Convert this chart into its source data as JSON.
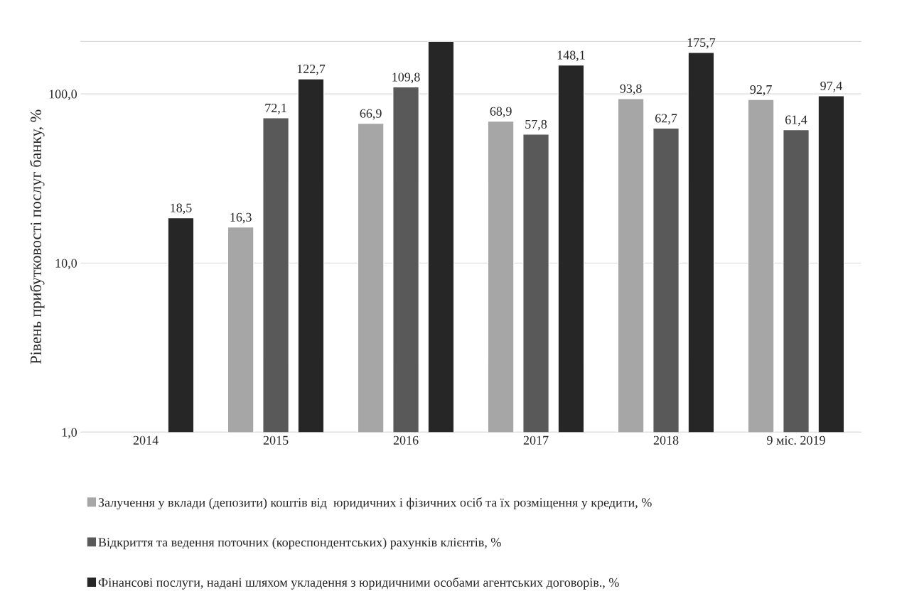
{
  "chart_data": {
    "type": "bar",
    "ylabel": "Рівень прибутковості послуг банку, %",
    "categories": [
      "2014",
      "2015",
      "2016",
      "2017",
      "2018",
      "9 міс. 2019"
    ],
    "series": [
      {
        "name": "Залучення у вклади (депозити) коштів від  юридичних і фізичних осіб та їх розміщення у кредити, %",
        "color": "#a6a6a6",
        "values": [
          null,
          16.3,
          66.9,
          68.9,
          93.8,
          92.7
        ],
        "value_labels": [
          null,
          "16,3",
          "66,9",
          "68,9",
          "93,8",
          "92,7"
        ]
      },
      {
        "name": "Відкриття та ведення поточних (кореспондентських) рахунків клієнтів, %",
        "color": "#595959",
        "values": [
          null,
          72.1,
          109.8,
          57.8,
          62.7,
          61.4
        ],
        "value_labels": [
          null,
          "72,1",
          "109,8",
          "57,8",
          "62,7",
          "61,4"
        ]
      },
      {
        "name": "Фінансові послуги, надані шляхом укладення з юридичними особами агентських договорів., %",
        "color": "#262626",
        "values": [
          18.5,
          122.7,
          204,
          148.1,
          175.7,
          97.4
        ],
        "value_labels": [
          "18,5",
          "122,7",
          null,
          "148,1",
          "175,7",
          "97,4"
        ]
      }
    ],
    "log": "y",
    "ylim": [
      1,
      204
    ],
    "yticks": [
      {
        "value": 1,
        "label": "1,0"
      },
      {
        "value": 10,
        "label": "10,0"
      },
      {
        "value": 100,
        "label": "100,0"
      }
    ],
    "grid": "y",
    "legend": "bottom"
  }
}
